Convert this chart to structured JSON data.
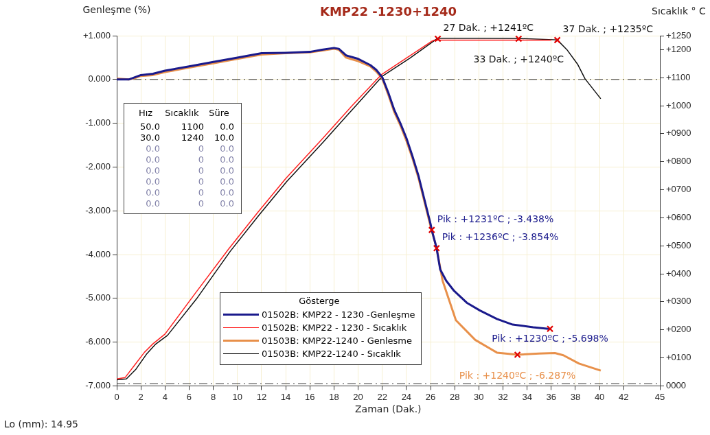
{
  "chart_data": {
    "type": "line",
    "title": "KMP22 -1230+1240",
    "xlabel": "Zaman (Dak.)",
    "ylabel": "Genleşme  (%)",
    "y2label": "Sıcaklık ° C",
    "legend_title": "Gösterge",
    "xlim": [
      0,
      45
    ],
    "xticks": [
      0,
      2,
      4,
      6,
      8,
      10,
      12,
      14,
      16,
      18,
      20,
      22,
      24,
      26,
      28,
      30,
      32,
      34,
      36,
      38,
      40,
      42,
      45
    ],
    "ylim": [
      -7,
      1
    ],
    "yticks": [
      {
        "value": 1,
        "label": "+1.000"
      },
      {
        "value": 0,
        "label": "0.000"
      },
      {
        "value": -1,
        "label": "-1.000"
      },
      {
        "value": -2,
        "label": "-2.000"
      },
      {
        "value": -3,
        "label": "-3.000"
      },
      {
        "value": -4,
        "label": "-4.000"
      },
      {
        "value": -5,
        "label": "-5.000"
      },
      {
        "value": -6,
        "label": "-6.000"
      },
      {
        "value": -7,
        "label": "-7.000"
      }
    ],
    "y2lim": [
      0,
      1250
    ],
    "y2ticks": [
      {
        "value": 0,
        "label": "0000"
      },
      {
        "value": 100,
        "label": "+0100"
      },
      {
        "value": 200,
        "label": "+0200"
      },
      {
        "value": 300,
        "label": "+0300"
      },
      {
        "value": 400,
        "label": "+0400"
      },
      {
        "value": 500,
        "label": "+0500"
      },
      {
        "value": 600,
        "label": "+0600"
      },
      {
        "value": 700,
        "label": "+0700"
      },
      {
        "value": 800,
        "label": "+0800"
      },
      {
        "value": 900,
        "label": "+0900"
      },
      {
        "value": 1000,
        "label": "+1000"
      },
      {
        "value": 1100,
        "label": "+1100"
      },
      {
        "value": 1200,
        "label": "+1200"
      },
      {
        "value": 1250,
        "label": "+1250"
      }
    ],
    "grid": true,
    "legend": "bottom left",
    "marker": "none",
    "ref_lines": [
      {
        "axis": "y",
        "value": 0,
        "color": "#333333",
        "line_style": "dashed"
      },
      {
        "axis": "y",
        "value": -6.95,
        "color": "#333333",
        "line_style": "dashed"
      }
    ],
    "series": [
      {
        "name": "01502B: KMP22 - 1230 -Genleşme",
        "color": "#1a1a8c",
        "x": [
          0,
          1,
          1.5,
          2,
          3,
          4,
          6,
          8,
          10,
          12,
          14,
          16,
          17,
          18,
          18.4,
          19,
          20,
          21,
          21.5,
          22,
          22.5,
          23,
          23.5,
          24,
          24.5,
          25,
          25.5,
          26,
          26.1,
          26.5,
          26.8,
          27.3,
          27.95,
          29,
          30.1,
          31.5,
          32.8,
          34.5,
          35.9
        ],
        "values": [
          0,
          0,
          0.05,
          0.1,
          0.13,
          0.2,
          0.3,
          0.4,
          0.5,
          0.6,
          0.61,
          0.63,
          0.68,
          0.72,
          0.7,
          0.55,
          0.47,
          0.33,
          0.22,
          0.05,
          -0.3,
          -0.7,
          -1.0,
          -1.34,
          -1.75,
          -2.2,
          -2.75,
          -3.3,
          -3.44,
          -3.85,
          -4.34,
          -4.6,
          -4.83,
          -5.1,
          -5.28,
          -5.47,
          -5.6,
          -5.66,
          -5.7
        ]
      },
      {
        "name": "01502B: KMP22 - 1230 - Sıcaklık",
        "color": "#ff2020",
        "axis": "y2",
        "x": [
          0,
          0.7,
          1.5,
          2.3,
          3,
          4,
          6.5,
          9.3,
          11.7,
          14,
          17,
          19.5,
          21.9,
          24,
          26.1,
          26.3,
          36
        ],
        "values": [
          25,
          30,
          75,
          120,
          150,
          185,
          330,
          490,
          620,
          740,
          880,
          1000,
          1110,
          1170,
          1230,
          1234,
          1234
        ]
      },
      {
        "name": "01503B: KMP22-1240 - Genlesme",
        "color": "#e8904a",
        "x": [
          0,
          1,
          1.5,
          2,
          3,
          4,
          6,
          8,
          10,
          12,
          14,
          16,
          17,
          18,
          18.4,
          19,
          20,
          21,
          21.5,
          22,
          22.5,
          23,
          23.5,
          24,
          24.5,
          25,
          25.5,
          26,
          26.5,
          27,
          28.1,
          29.7,
          31.5,
          33.2,
          35,
          36.3,
          37,
          38.3,
          40.1
        ],
        "values": [
          0.02,
          0,
          0.03,
          0.08,
          0.1,
          0.17,
          0.27,
          0.37,
          0.47,
          0.57,
          0.6,
          0.62,
          0.66,
          0.7,
          0.68,
          0.5,
          0.42,
          0.3,
          0.18,
          0.02,
          -0.35,
          -0.75,
          -1.05,
          -1.4,
          -1.8,
          -2.25,
          -2.8,
          -3.35,
          -3.85,
          -4.6,
          -5.5,
          -5.95,
          -6.24,
          -6.29,
          -6.26,
          -6.25,
          -6.3,
          -6.49,
          -6.65
        ]
      },
      {
        "name": "01503B: KMP22-1240 - Sıcaklık",
        "color": "#111111",
        "axis": "y2",
        "x": [
          0,
          0.8,
          1.6,
          2.5,
          3.2,
          4.2,
          6.6,
          9.4,
          11.8,
          14.1,
          17.1,
          19.6,
          22,
          24.3,
          26.6,
          30,
          33.3,
          36.5,
          37.3,
          38.2,
          38.8,
          40.1
        ],
        "values": [
          22,
          25,
          60,
          115,
          148,
          180,
          310,
          480,
          610,
          730,
          870,
          990,
          1105,
          1170,
          1241,
          1241,
          1240,
          1235,
          1200,
          1147,
          1096,
          1025
        ]
      }
    ],
    "annotations": [
      "Lo (mm): 14.95",
      "Hız Sıcaklık Süre",
      "50.0 1100 0.0",
      "30.0 1240 10.0",
      "0.0 0 0.0",
      "0.0 0 0.0",
      "0.0 0 0.0",
      "0.0 0 0.0",
      "0.0 0 0.0",
      "0.0 0 0.0",
      {
        "text": "27 Dak. ; +1241ºC",
        "x": 26.6,
        "y": 0.93
      },
      {
        "text": "33 Dak. ; +1240ºC",
        "x": 33.3,
        "y": 0.93
      },
      {
        "text": "37 Dak. ; +1235ºC",
        "x": 36.5,
        "y": 0.9
      },
      {
        "text": "Pik : +1231ºC ; -3.438%",
        "x": 26.1,
        "y": -3.438
      },
      {
        "text": "Pik : +1236ºC ; -3.854%",
        "x": 26.5,
        "y": -3.854
      },
      {
        "text": "Pik : +1230ºC ; -5.698%",
        "x": 35.9,
        "y": -5.698
      },
      {
        "text": "Pik : +1240ºC ; -6.287%",
        "x": 33.2,
        "y": -6.287
      }
    ]
  }
}
